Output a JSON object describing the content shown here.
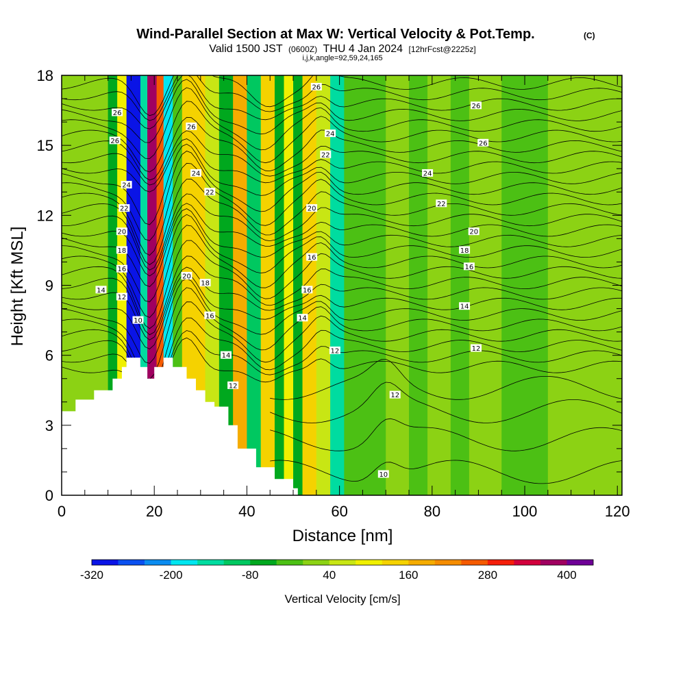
{
  "title": {
    "main": "Wind-Parallel Section at Max W: Vertical Velocity & Pot.Temp.",
    "copyright": "(C)",
    "valid": "Valid 1500 JST",
    "utc": "(0600Z)",
    "date": "THU 4 Jan 2024",
    "forecast": "[12hrFcst@2225z]",
    "indices": "i,j,k,angle=92,59,24,165"
  },
  "chart_data": {
    "type": "heatmap",
    "xlabel": "Distance [nm]",
    "ylabel": "Height [Kft MSL]",
    "xlim": [
      0,
      121
    ],
    "ylim": [
      0,
      18
    ],
    "x_ticks": [
      0,
      20,
      40,
      60,
      80,
      100,
      120
    ],
    "y_ticks": [
      0,
      3,
      6,
      9,
      12,
      15,
      18
    ],
    "colorbar": {
      "title": "Vertical Velocity [cm/s]",
      "tick_labels": [
        -320,
        -200,
        -80,
        40,
        160,
        280,
        400
      ],
      "levels": [
        -320,
        -280,
        -240,
        -200,
        -160,
        -120,
        -80,
        -40,
        0,
        40,
        80,
        120,
        160,
        200,
        240,
        280,
        320,
        360,
        400,
        440
      ],
      "colors": [
        "#0a14e6",
        "#0a50f0",
        "#0a8cf0",
        "#00e6f0",
        "#00dca0",
        "#00c860",
        "#00a81e",
        "#4cc014",
        "#8cd214",
        "#c8e614",
        "#f0f000",
        "#f5d200",
        "#f5ac00",
        "#f58c00",
        "#f55a00",
        "#f51e0a",
        "#d2003c",
        "#a00060",
        "#6e0096"
      ]
    },
    "vertical_velocity_bands": [
      {
        "x_from": 0,
        "x_to": 10,
        "value": 20
      },
      {
        "x_from": 10,
        "x_to": 12,
        "value": -60
      },
      {
        "x_from": 12,
        "x_to": 14,
        "value": 110
      },
      {
        "x_from": 14,
        "x_to": 17,
        "value": -300
      },
      {
        "x_from": 17,
        "x_to": 18.5,
        "value": -150
      },
      {
        "x_from": 18.5,
        "x_to": 20.5,
        "value": 380
      },
      {
        "x_from": 20.5,
        "x_to": 22,
        "value": 250
      },
      {
        "x_from": 22,
        "x_to": 24,
        "value": -200
      },
      {
        "x_from": 24,
        "x_to": 26,
        "value": -20
      },
      {
        "x_from": 26,
        "x_to": 31,
        "value": 120
      },
      {
        "x_from": 31,
        "x_to": 34,
        "value": 60
      },
      {
        "x_from": 34,
        "x_to": 37,
        "value": -60
      },
      {
        "x_from": 37,
        "x_to": 40,
        "value": 170
      },
      {
        "x_from": 40,
        "x_to": 43,
        "value": -100
      },
      {
        "x_from": 43,
        "x_to": 46,
        "value": 150
      },
      {
        "x_from": 46,
        "x_to": 48,
        "value": -70
      },
      {
        "x_from": 48,
        "x_to": 50,
        "value": 100
      },
      {
        "x_from": 50,
        "x_to": 52,
        "value": -70
      },
      {
        "x_from": 52,
        "x_to": 55,
        "value": 130
      },
      {
        "x_from": 55,
        "x_to": 58,
        "value": 60
      },
      {
        "x_from": 58,
        "x_to": 61,
        "value": -150
      },
      {
        "x_from": 61,
        "x_to": 70,
        "value": -10
      },
      {
        "x_from": 70,
        "x_to": 75,
        "value": 20
      },
      {
        "x_from": 75,
        "x_to": 79,
        "value": -30
      },
      {
        "x_from": 79,
        "x_to": 84,
        "value": 30
      },
      {
        "x_from": 84,
        "x_to": 88,
        "value": -20
      },
      {
        "x_from": 88,
        "x_to": 95,
        "value": 10
      },
      {
        "x_from": 95,
        "x_to": 105,
        "value": -20
      },
      {
        "x_from": 105,
        "x_to": 121,
        "value": 0
      }
    ],
    "terrain_top": [
      {
        "x": 0,
        "y": 3.6
      },
      {
        "x": 3,
        "y": 4.1
      },
      {
        "x": 7,
        "y": 4.5
      },
      {
        "x": 11,
        "y": 5.0
      },
      {
        "x": 13,
        "y": 5.5
      },
      {
        "x": 14,
        "y": 5.9
      },
      {
        "x": 17,
        "y": 5.5
      },
      {
        "x": 18.5,
        "y": 5.0
      },
      {
        "x": 20,
        "y": 5.5
      },
      {
        "x": 22,
        "y": 5.9
      },
      {
        "x": 24,
        "y": 5.5
      },
      {
        "x": 27,
        "y": 5.0
      },
      {
        "x": 29,
        "y": 4.5
      },
      {
        "x": 31,
        "y": 4.0
      },
      {
        "x": 33,
        "y": 3.8
      },
      {
        "x": 36,
        "y": 3.0
      },
      {
        "x": 38,
        "y": 2.0
      },
      {
        "x": 42,
        "y": 1.2
      },
      {
        "x": 46,
        "y": 0.7
      },
      {
        "x": 50,
        "y": 0.3
      },
      {
        "x": 51,
        "y": 0
      }
    ],
    "theta_contour_labels": [
      {
        "value": "26",
        "x": 55,
        "y": 17.5
      },
      {
        "value": "26",
        "x": 89.5,
        "y": 16.7
      },
      {
        "value": "26",
        "x": 12,
        "y": 16.4
      },
      {
        "value": "26",
        "x": 28,
        "y": 15.8
      },
      {
        "value": "26",
        "x": 11.5,
        "y": 15.2
      },
      {
        "value": "26",
        "x": 91,
        "y": 15.1
      },
      {
        "value": "24",
        "x": 58,
        "y": 15.5
      },
      {
        "value": "22",
        "x": 57,
        "y": 14.6
      },
      {
        "value": "24",
        "x": 29,
        "y": 13.8
      },
      {
        "value": "24",
        "x": 79,
        "y": 13.8
      },
      {
        "value": "24",
        "x": 14,
        "y": 13.3
      },
      {
        "value": "22",
        "x": 32,
        "y": 13.0
      },
      {
        "value": "22",
        "x": 82,
        "y": 12.5
      },
      {
        "value": "22",
        "x": 13.5,
        "y": 12.3
      },
      {
        "value": "20",
        "x": 54,
        "y": 12.3
      },
      {
        "value": "20",
        "x": 13,
        "y": 11.3
      },
      {
        "value": "20",
        "x": 89,
        "y": 11.3
      },
      {
        "value": "18",
        "x": 13,
        "y": 10.5
      },
      {
        "value": "18",
        "x": 87,
        "y": 10.5
      },
      {
        "value": "16",
        "x": 54,
        "y": 10.2
      },
      {
        "value": "16",
        "x": 13,
        "y": 9.7
      },
      {
        "value": "16",
        "x": 88,
        "y": 9.8
      },
      {
        "value": "20",
        "x": 27,
        "y": 9.4
      },
      {
        "value": "18",
        "x": 31,
        "y": 9.1
      },
      {
        "value": "14",
        "x": 8.5,
        "y": 8.8
      },
      {
        "value": "16",
        "x": 53,
        "y": 8.8
      },
      {
        "value": "12",
        "x": 13,
        "y": 8.5
      },
      {
        "value": "14",
        "x": 87,
        "y": 8.1
      },
      {
        "value": "16",
        "x": 32,
        "y": 7.7
      },
      {
        "value": "14",
        "x": 52,
        "y": 7.6
      },
      {
        "value": "10",
        "x": 16.5,
        "y": 7.5
      },
      {
        "value": "12",
        "x": 59,
        "y": 6.2
      },
      {
        "value": "12",
        "x": 89.5,
        "y": 6.3
      },
      {
        "value": "14",
        "x": 35.5,
        "y": 6.0
      },
      {
        "value": "12",
        "x": 37,
        "y": 4.7
      },
      {
        "value": "12",
        "x": 72,
        "y": 4.3
      },
      {
        "value": "10",
        "x": 69.5,
        "y": 0.9
      }
    ]
  }
}
